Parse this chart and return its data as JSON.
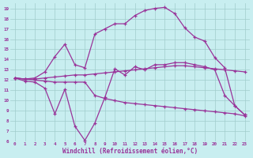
{
  "background_color": "#c8eef0",
  "grid_color": "#a0cccc",
  "line_color": "#993399",
  "xlim": [
    -0.5,
    23.5
  ],
  "ylim": [
    6,
    19.5
  ],
  "xlabel": "Windchill (Refroidissement éolien,°C)",
  "xlabel_fontsize": 5.5,
  "xtick_labels": [
    "0",
    "1",
    "2",
    "3",
    "4",
    "5",
    "6",
    "7",
    "8",
    "9",
    "10",
    "11",
    "12",
    "13",
    "14",
    "15",
    "16",
    "17",
    "18",
    "19",
    "20",
    "21",
    "22",
    "23"
  ],
  "ytick_labels": [
    "6",
    "7",
    "8",
    "9",
    "10",
    "11",
    "12",
    "13",
    "14",
    "15",
    "16",
    "17",
    "18",
    "19"
  ],
  "curve_spike_x": [
    0,
    1,
    2,
    3,
    4,
    5,
    6,
    7,
    8,
    9,
    10,
    11,
    12,
    13,
    14,
    15,
    16,
    17,
    18,
    19,
    20,
    21,
    22,
    23
  ],
  "curve_spike_y": [
    12.2,
    11.9,
    11.8,
    11.2,
    8.7,
    11.1,
    7.5,
    6.1,
    7.8,
    10.3,
    13.1,
    12.5,
    13.3,
    13.0,
    13.5,
    13.5,
    13.7,
    13.7,
    13.5,
    13.3,
    13.0,
    10.5,
    9.5,
    8.6
  ],
  "curve_upper_x": [
    0,
    1,
    2,
    3,
    4,
    5,
    6,
    7,
    8,
    9,
    10,
    11,
    12,
    13,
    14,
    15,
    16,
    17,
    18,
    19,
    20,
    21,
    22,
    23
  ],
  "curve_upper_y": [
    12.2,
    12.1,
    12.2,
    12.8,
    14.3,
    15.5,
    13.5,
    13.2,
    16.5,
    17.0,
    17.5,
    17.5,
    18.3,
    18.8,
    19.0,
    19.1,
    18.5,
    17.1,
    16.2,
    15.8,
    14.2,
    13.2,
    9.5,
    8.6
  ],
  "curve_mid_x": [
    0,
    1,
    2,
    3,
    4,
    5,
    6,
    7,
    8,
    9,
    10,
    11,
    12,
    13,
    14,
    15,
    16,
    17,
    18,
    19,
    20,
    21,
    22,
    23
  ],
  "curve_mid_y": [
    12.2,
    12.1,
    12.1,
    12.2,
    12.3,
    12.4,
    12.5,
    12.5,
    12.6,
    12.7,
    12.8,
    12.9,
    13.0,
    13.1,
    13.2,
    13.3,
    13.4,
    13.4,
    13.3,
    13.2,
    13.1,
    13.0,
    12.9,
    12.8
  ],
  "curve_lower_x": [
    0,
    1,
    2,
    3,
    4,
    5,
    6,
    7,
    8,
    9,
    10,
    11,
    12,
    13,
    14,
    15,
    16,
    17,
    18,
    19,
    20,
    21,
    22,
    23
  ],
  "curve_lower_y": [
    12.2,
    12.1,
    12.0,
    11.9,
    11.8,
    11.8,
    11.8,
    11.8,
    10.5,
    10.2,
    10.0,
    9.8,
    9.7,
    9.6,
    9.5,
    9.4,
    9.3,
    9.2,
    9.1,
    9.0,
    8.9,
    8.8,
    8.7,
    8.5
  ]
}
